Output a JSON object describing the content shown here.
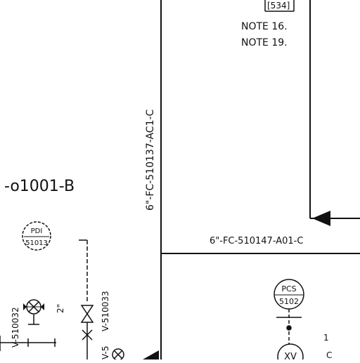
{
  "drawing": {
    "top_tag": "[534]",
    "note_a": "NOTE 16.",
    "note_b": "NOTE 19.",
    "vertical_line_label": "6\"-FC-510137-AC1-C",
    "horizontal_line_label": "6\"-FC-510147-A01-C",
    "left_line_label": "-o1001-B",
    "instrument_pdi": {
      "line1": "PDI",
      "line2": "51013"
    },
    "instrument_pcs": {
      "line1": "PCS",
      "line2": "5102"
    },
    "valve_left_tag": "V-510032",
    "valve_left_size": "2\"",
    "valve_mid_tag": "V-510033",
    "valve_lower_tag": "V-5",
    "symbol_ivv": "XV",
    "small_mark": "1",
    "small_mark_c": "C"
  },
  "colors": {
    "line": "#111111",
    "background": "#ffffff"
  }
}
